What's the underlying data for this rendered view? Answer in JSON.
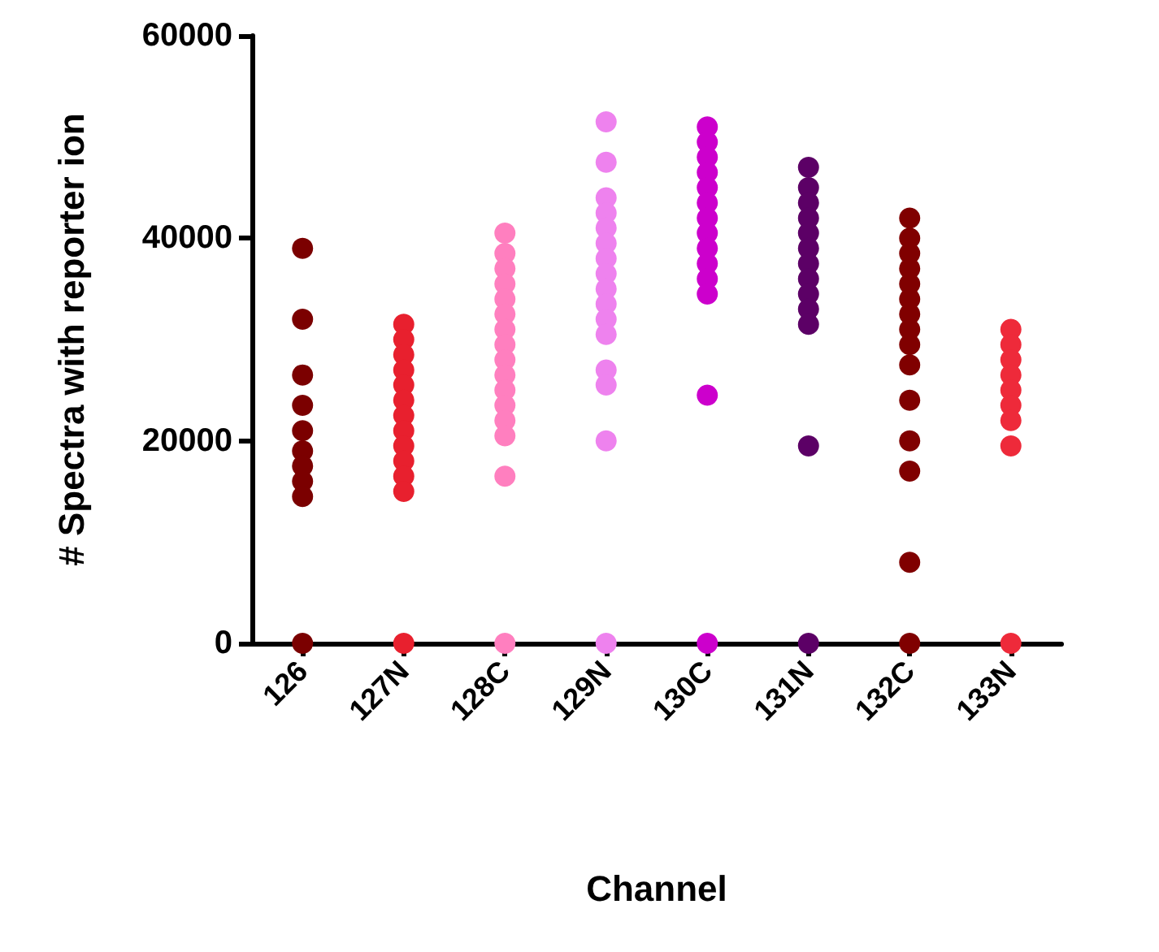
{
  "chart_data": {
    "type": "scatter",
    "xlabel": "Channel",
    "ylabel": "# Spectra with reporter ion",
    "categories": [
      "126",
      "127N",
      "128C",
      "129N",
      "130C",
      "131N",
      "132C",
      "133N"
    ],
    "ylim": [
      0,
      60000
    ],
    "yticks": [
      0,
      20000,
      40000,
      60000
    ],
    "grid": false,
    "marker": "circle",
    "series": [
      {
        "color": "#7b0000",
        "x": [
          "126",
          "126",
          "126",
          "126",
          "126",
          "126",
          "126",
          "126",
          "126",
          "126"
        ],
        "values": [
          0,
          39000,
          32000,
          26500,
          23500,
          21000,
          19000,
          17500,
          16000,
          14500
        ]
      },
      {
        "color": "#e8202e",
        "x": [
          "127N",
          "127N",
          "127N",
          "127N",
          "127N",
          "127N",
          "127N",
          "127N",
          "127N",
          "127N",
          "127N",
          "127N",
          "127N"
        ],
        "values": [
          0,
          31500,
          30000,
          28500,
          27000,
          25500,
          24000,
          22500,
          21000,
          19500,
          18000,
          16500,
          15000
        ]
      },
      {
        "color": "#ff7fbf",
        "x": [
          "128C",
          "128C",
          "128C",
          "128C",
          "128C",
          "128C",
          "128C",
          "128C",
          "128C",
          "128C",
          "128C",
          "128C",
          "128C",
          "128C",
          "128C",
          "128C"
        ],
        "values": [
          0,
          40500,
          38500,
          37000,
          35500,
          34000,
          32500,
          31000,
          29500,
          28000,
          26500,
          25000,
          23500,
          22000,
          20500,
          16500
        ]
      },
      {
        "color": "#ee82ee",
        "x": [
          "129N",
          "129N",
          "129N",
          "129N",
          "129N",
          "129N",
          "129N",
          "129N",
          "129N",
          "129N",
          "129N",
          "129N",
          "129N",
          "129N",
          "129N",
          "129N"
        ],
        "values": [
          0,
          51500,
          47500,
          44000,
          42500,
          41000,
          39500,
          38000,
          36500,
          35000,
          33500,
          32000,
          30500,
          27000,
          25500,
          20000
        ]
      },
      {
        "color": "#cc00cc",
        "x": [
          "130C",
          "130C",
          "130C",
          "130C",
          "130C",
          "130C",
          "130C",
          "130C",
          "130C",
          "130C",
          "130C",
          "130C",
          "130C",
          "130C"
        ],
        "values": [
          0,
          51000,
          49500,
          48000,
          46500,
          45000,
          43500,
          42000,
          40500,
          39000,
          37500,
          36000,
          34500,
          24500
        ]
      },
      {
        "color": "#5c0066",
        "x": [
          "131N",
          "131N",
          "131N",
          "131N",
          "131N",
          "131N",
          "131N",
          "131N",
          "131N",
          "131N",
          "131N",
          "131N",
          "131N"
        ],
        "values": [
          0,
          47000,
          45000,
          43500,
          42000,
          40500,
          39000,
          37500,
          36000,
          34500,
          33000,
          31500,
          19500
        ]
      },
      {
        "color": "#800000",
        "x": [
          "132C",
          "132C",
          "132C",
          "132C",
          "132C",
          "132C",
          "132C",
          "132C",
          "132C",
          "132C",
          "132C",
          "132C",
          "132C",
          "132C",
          "132C"
        ],
        "values": [
          0,
          42000,
          40000,
          38500,
          37000,
          35500,
          34000,
          32500,
          31000,
          29500,
          27500,
          24000,
          20000,
          17000,
          8000
        ]
      },
      {
        "color": "#ee2a3a",
        "x": [
          "133N",
          "133N",
          "133N",
          "133N",
          "133N",
          "133N",
          "133N",
          "133N",
          "133N"
        ],
        "values": [
          0,
          31000,
          29500,
          28000,
          26500,
          25000,
          23500,
          22000,
          19500
        ]
      }
    ]
  }
}
